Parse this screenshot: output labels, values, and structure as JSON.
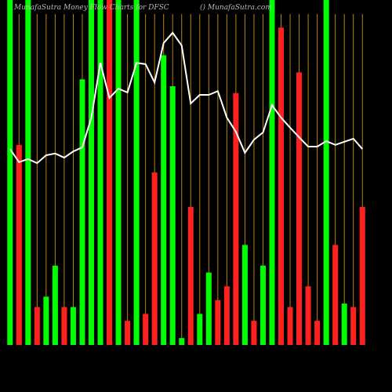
{
  "chart_data": {
    "type": "bar-line",
    "title": "MunafaSutra  Money Flow  Charts for DFSC",
    "subtitle": "() MunafaSutra.com",
    "categories": [
      null,
      null,
      null,
      null,
      null,
      null,
      null,
      null,
      null,
      null,
      null,
      null,
      null,
      null,
      null,
      null,
      null,
      null,
      null,
      null,
      null,
      null,
      null,
      null,
      null,
      null,
      null,
      null,
      null,
      null,
      null,
      null,
      null,
      null,
      null,
      null,
      null,
      null,
      null,
      null
    ],
    "values": [
      100,
      58,
      100,
      11,
      14,
      23,
      11,
      11,
      77,
      100,
      100,
      100,
      100,
      7,
      100,
      9,
      50,
      84,
      75,
      2,
      40,
      9,
      21,
      13,
      17,
      73,
      29,
      7,
      23,
      100,
      92,
      11,
      79,
      17,
      7,
      100,
      29,
      12,
      11,
      40
    ],
    "colors": [
      "#00ff00",
      "#ff2020",
      "#00ff00",
      "#ff2020",
      "#00ff00",
      "#00ff00",
      "#ff2020",
      "#00ff00",
      "#00ff00",
      "#00ff00",
      "#00ff00",
      "#ff2020",
      "#00ff00",
      "#ff2020",
      "#00ff00",
      "#ff2020",
      "#ff2020",
      "#00ff00",
      "#00ff00",
      "#00ff00",
      "#ff2020",
      "#00ff00",
      "#00ff00",
      "#ff2020",
      "#ff2020",
      "#ff2020",
      "#00ff00",
      "#ff2020",
      "#00ff00",
      "#00ff00",
      "#ff2020",
      "#ff2020",
      "#ff2020",
      "#ff2020",
      "#ff2020",
      "#00ff00",
      "#ff2020",
      "#00ff00",
      "#ff2020",
      "#ff2020"
    ],
    "line": {
      "color": "#ffffff",
      "values": [
        56.8,
        53.0,
        53.9,
        52.7,
        55.0,
        55.5,
        54.3,
        56.1,
        57.3,
        65.9,
        81.8,
        71.6,
        74.3,
        73.2,
        81.8,
        81.4,
        76.1,
        87.5,
        90.5,
        86.8,
        70.0,
        72.5,
        72.5,
        73.6,
        65.9,
        61.8,
        55.7,
        59.5,
        61.6,
        69.5,
        65.9,
        63.0,
        60.2,
        57.5,
        57.5,
        59.1,
        58.0,
        58.9,
        59.8,
        56.8
      ]
    },
    "ylim": [
      0,
      100
    ]
  }
}
